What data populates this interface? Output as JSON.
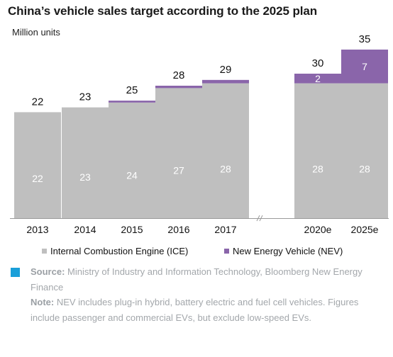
{
  "title": "China’s vehicle sales target according to the 2025 plan",
  "unit_label": "Million units",
  "colors": {
    "ice": "#bfbfbf",
    "nev": "#8a65aa",
    "marker": "#1a9fd9",
    "notes_text": "#a3a7ab"
  },
  "chart_data": {
    "type": "bar",
    "stacked": true,
    "title": "China’s vehicle sales target according to the 2025 plan",
    "ylabel": "Million units",
    "categories": [
      "2013",
      "2014",
      "2015",
      "2016",
      "2017",
      "2020e",
      "2025e"
    ],
    "series": [
      {
        "name": "Internal Combustion Engine (ICE)",
        "values": [
          22,
          23,
          24,
          27,
          28,
          28,
          28
        ],
        "labels": [
          "22",
          "23",
          "24",
          "27",
          "28",
          "28",
          "28"
        ]
      },
      {
        "name": "New Energy Vehicle (NEV)",
        "values": [
          0,
          0,
          0.4,
          0.5,
          0.7,
          2,
          7
        ],
        "labels": [
          "",
          "",
          "",
          "",
          "",
          "2",
          "7"
        ]
      }
    ],
    "totals": [
      "22",
      "23",
      "25",
      "28",
      "29",
      "30",
      "35"
    ],
    "ylim": [
      0,
      35
    ],
    "grid": false,
    "legend": "bottom"
  },
  "notes": {
    "source_label": "Source:",
    "source_text": " Ministry of Industry and Information Technology, Bloomberg New Energy Finance",
    "note_label": "Note:",
    "note_text": " NEV includes plug-in hybrid, battery electric and fuel cell vehicles. Figures include passenger and commercial EVs, but exclude low-speed EVs."
  }
}
